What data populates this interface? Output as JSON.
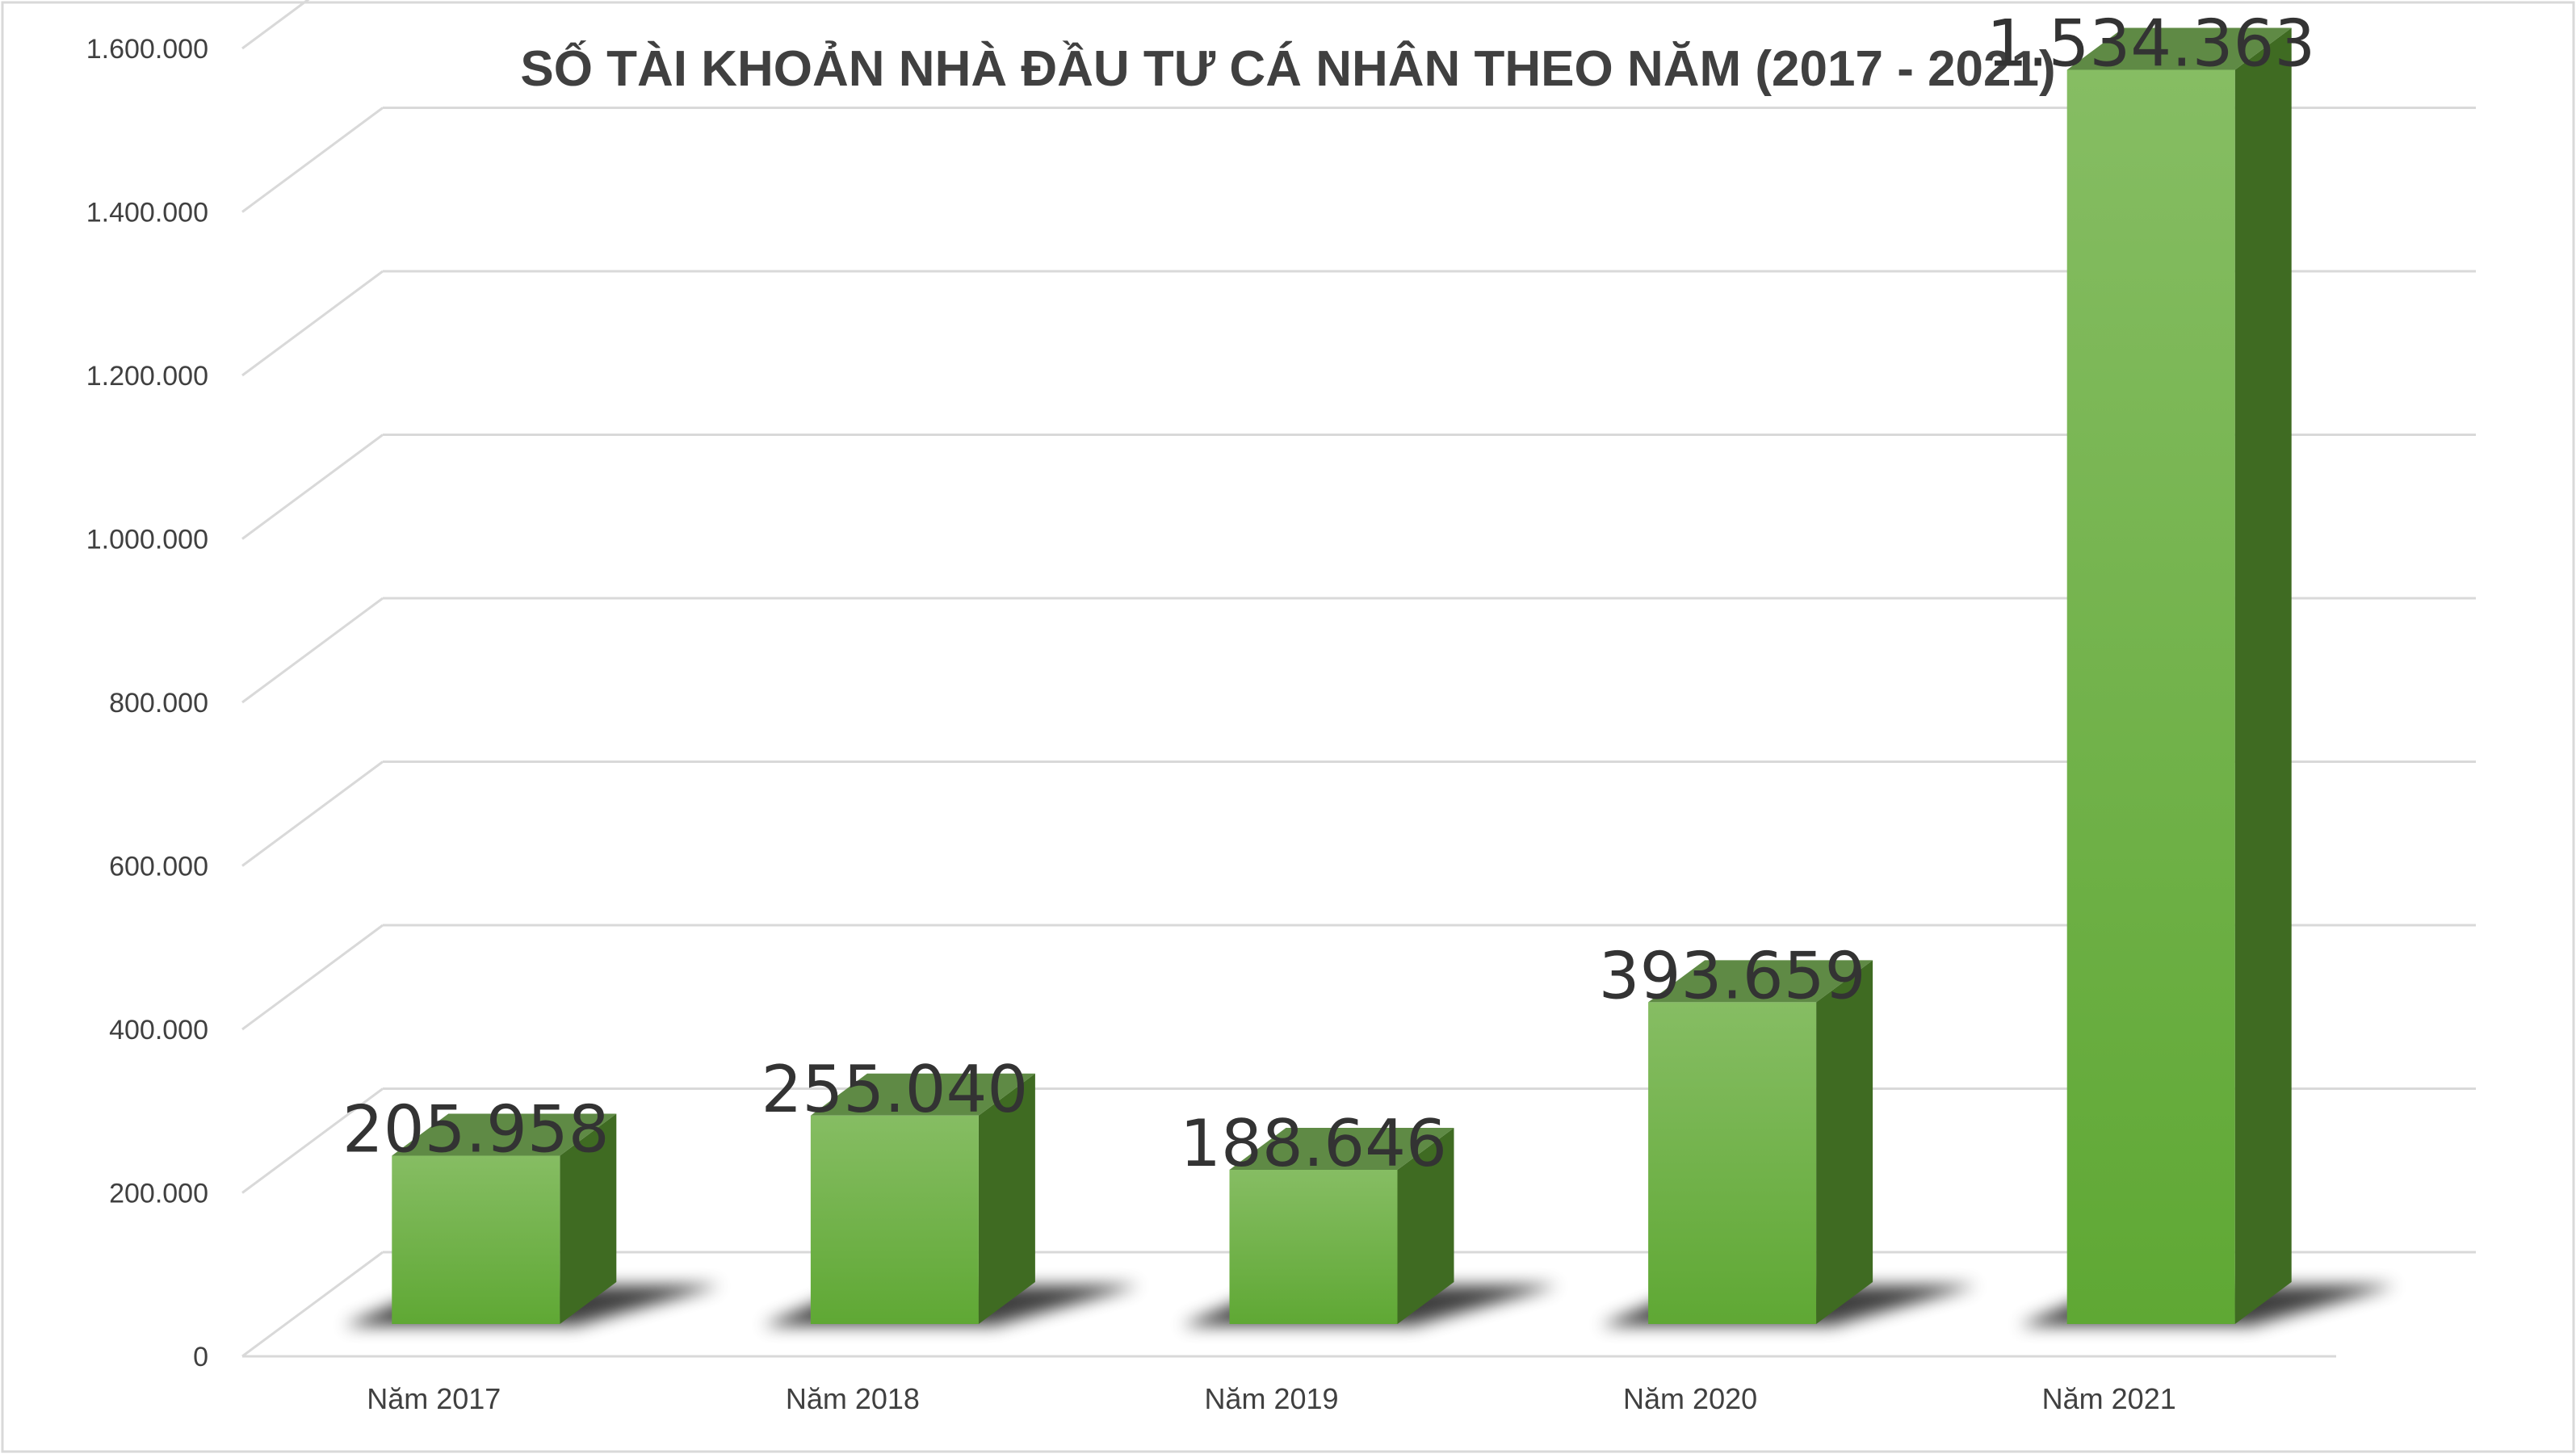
{
  "chart_data": {
    "type": "bar",
    "title": "SỐ TÀI KHOẢN NHÀ ĐẦU TƯ CÁ NHÂN THEO NĂM (2017 - 2021)",
    "categories": [
      "Năm 2017",
      "Năm 2018",
      "Năm 2019",
      "Năm 2020",
      "Năm 2021"
    ],
    "values": [
      205958,
      255040,
      188646,
      393659,
      1534363
    ],
    "data_labels": [
      "205.958",
      "255.040",
      "188.646",
      "393.659",
      "1.534.363"
    ],
    "y_ticks": [
      "0",
      "200.000",
      "400.000",
      "600.000",
      "800.000",
      "1.000.000",
      "1.200.000",
      "1.400.000",
      "1.600.000"
    ],
    "y_tick_values": [
      0,
      200000,
      400000,
      600000,
      800000,
      1000000,
      1200000,
      1400000,
      1600000
    ],
    "ylim": [
      0,
      1750000
    ],
    "xlabel": "",
    "ylabel": "",
    "style": "3d-column",
    "grid": true,
    "legend": "none",
    "colors": {
      "bar_front_top": "#86bd63",
      "bar_front_bottom": "#5fa834",
      "bar_top_face": "#5f8a45",
      "bar_side_face": "#3f6b22",
      "gridline": "#d9d9d9",
      "text": "#404040",
      "border": "#d9d9d9"
    }
  }
}
